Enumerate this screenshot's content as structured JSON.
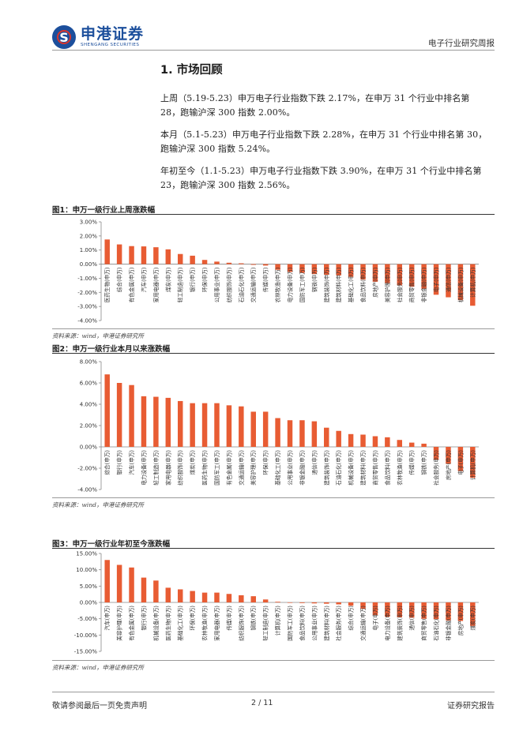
{
  "header": {
    "brand_cn": "申港证券",
    "brand_en": "SHENGANG SECURITIES",
    "report_type": "电子行业研究周报"
  },
  "section": {
    "title": "1. 市场回顾",
    "paragraphs": [
      "上周（5.19-5.23）申万电子行业指数下跌 2.17%，在申万 31 个行业中排名第 28，跑输沪深 300 指数 2.00%。",
      "本月（5.1-5.23）申万电子行业指数下跌 2.28%，在申万 31 个行业中排名第 30，跑输沪深 300 指数 5.24%。",
      "年初至今（1.1-5.23）申万电子行业指数下跌 3.90%，在申万 31 个行业中排名第 23，跑输沪深 300 指数 2.56%。"
    ]
  },
  "figures": [
    {
      "title": "图1：申万一级行业上周涨跌幅",
      "source": "资料来源：wind，申港证券研究所"
    },
    {
      "title": "图2：申万一级行业本月以来涨跌幅",
      "source": "资料来源：wind，申港证券研究所"
    },
    {
      "title": "图3：申万一级行业年初至今涨跌幅",
      "source": "资料来源：wind，申港证券研究所"
    }
  ],
  "chart_data": [
    {
      "type": "bar",
      "title": "申万一级行业上周涨跌幅",
      "ylim": [
        -4,
        3
      ],
      "yticks": [
        "3.00%",
        "2.00%",
        "1.00%",
        "0.00%",
        "-1.00%",
        "-2.00%",
        "-3.00%",
        "-4.00%"
      ],
      "ytick_values": [
        3,
        2,
        1,
        0,
        -1,
        -2,
        -3,
        -4
      ],
      "categories": [
        "医药生物(申万)",
        "综合(申万)",
        "有色金属(申万)",
        "汽车(申万)",
        "家用电器(申万)",
        "煤炭(申万)",
        "轻工制造(申万)",
        "银行(申万)",
        "环保(申万)",
        "公用事业(申万)",
        "纺织服饰(申万)",
        "石油石化(申万)",
        "交通运输(申万)",
        "传媒(申万)",
        "农林牧渔(申万)",
        "电力设备(申万)",
        "国防军工(申万)",
        "钢铁(申万)",
        "建筑装饰(申万)",
        "建筑材料(申万)",
        "基础化工(申万)",
        "食品饮料(申万)",
        "房地产(申万)",
        "美容护理(申万)",
        "社会服务(申万)",
        "商贸零售(申万)",
        "非银金融(申万)",
        "电子(申万)",
        "通信(申万)",
        "机械设备(申万)",
        "计算机(申万)"
      ],
      "values": [
        1.75,
        1.4,
        1.28,
        1.26,
        1.2,
        1.05,
        0.72,
        0.6,
        0.3,
        0.18,
        0.1,
        0.06,
        -0.05,
        -0.1,
        -0.4,
        -0.55,
        -0.62,
        -0.7,
        -0.75,
        -0.8,
        -0.9,
        -1.1,
        -1.25,
        -1.35,
        -1.5,
        -1.6,
        -1.75,
        -2.17,
        -2.35,
        -2.55,
        -2.95
      ]
    },
    {
      "type": "bar",
      "title": "申万一级行业本月以来涨跌幅",
      "ylim": [
        -4,
        8
      ],
      "yticks": [
        "8.00%",
        "6.00%",
        "4.00%",
        "2.00%",
        "0.00%",
        "-2.00%",
        "-4.00%"
      ],
      "ytick_values": [
        8,
        6,
        4,
        2,
        0,
        -2,
        -4
      ],
      "categories": [
        "综合(申万)",
        "银行(申万)",
        "汽车(申万)",
        "电力设备(申万)",
        "轻工制造(申万)",
        "家用电器(申万)",
        "纺织服饰(申万)",
        "煤炭(申万)",
        "医药生物(申万)",
        "国防军工(申万)",
        "有色金属(申万)",
        "交通运输(申万)",
        "美容护理(申万)",
        "环保(申万)",
        "基础化工(申万)",
        "公用事业(申万)",
        "非银金融(申万)",
        "通信(申万)",
        "建筑装饰(申万)",
        "石油石化(申万)",
        "机械设备(申万)",
        "建筑材料(申万)",
        "商贸零售(申万)",
        "食品饮料(申万)",
        "农林牧渔(申万)",
        "传媒(申万)",
        "钢铁(申万)",
        "社会服务(申万)",
        "房地产(申万)",
        "电子(申万)",
        "计算机(申万)"
      ],
      "values": [
        6.8,
        6.0,
        5.8,
        4.75,
        4.7,
        4.6,
        4.3,
        4.1,
        4.1,
        4.1,
        3.9,
        3.8,
        3.3,
        3.3,
        2.7,
        2.5,
        2.5,
        2.4,
        1.8,
        1.5,
        1.2,
        1.15,
        1.0,
        0.9,
        0.65,
        0.4,
        0.3,
        -1.2,
        -1.6,
        -2.28,
        -2.9
      ]
    },
    {
      "type": "bar",
      "title": "申万一级行业年初至今涨跌幅",
      "ylim": [
        -15,
        15
      ],
      "yticks": [
        "15.00%",
        "10.00%",
        "5.00%",
        "0.00%",
        "-5.00%",
        "-10.00%",
        "-15.00%"
      ],
      "ytick_values": [
        15,
        10,
        5,
        0,
        -5,
        -10,
        -15
      ],
      "categories": [
        "汽车(申万)",
        "美容护理(申万)",
        "有色金属(申万)",
        "银行(申万)",
        "机械设备(申万)",
        "医药生物(申万)",
        "基础化工(申万)",
        "环保(申万)",
        "农林牧渔(申万)",
        "家用电器(申万)",
        "传媒(申万)",
        "纺织服饰(申万)",
        "钢铁(申万)",
        "轻工制造(申万)",
        "计算机(申万)",
        "国防军工(申万)",
        "食品饮料(申万)",
        "公用事业(申万)",
        "建筑材料(申万)",
        "社会服务(申万)",
        "综合(申万)",
        "交通运输(申万)",
        "电子(申万)",
        "电力设备(申万)",
        "建筑装饰(申万)",
        "通信(申万)",
        "商贸零售(申万)",
        "石油石化(申万)",
        "非银金融(申万)",
        "房地产(申万)",
        "煤炭(申万)"
      ],
      "values": [
        13.0,
        11.5,
        10.7,
        7.6,
        6.7,
        4.5,
        4.0,
        3.5,
        3.0,
        3.0,
        2.6,
        2.2,
        1.9,
        0.9,
        0.2,
        -0.1,
        -0.2,
        -0.3,
        -0.4,
        -0.6,
        -1.0,
        -2.0,
        -3.9,
        -4.4,
        -4.6,
        -4.7,
        -5.0,
        -5.2,
        -5.5,
        -5.7,
        -7.2
      ]
    }
  ],
  "footer": {
    "left": "敬请参阅最后一页免责声明",
    "page": "2 / 11",
    "right": "证券研究报告"
  },
  "colors": {
    "bar": "#e85c33",
    "brand_blue": "#1c4f9c",
    "brand_red": "#d8342c"
  }
}
